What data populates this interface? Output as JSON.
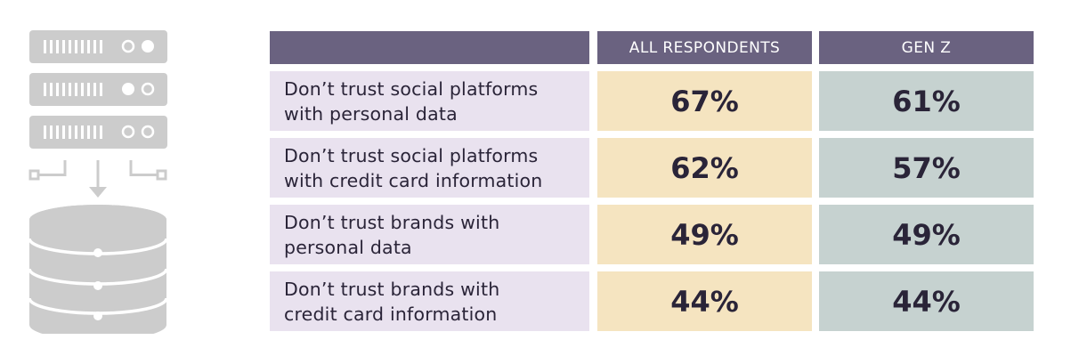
{
  "illustration": {
    "icons": [
      "server-rack-icon",
      "database-icon"
    ],
    "icon_color": "#cccccc"
  },
  "colors": {
    "header_bg": "#6a6280",
    "label_bg": "#e9e2ef",
    "all_bg": "#f5e4c0",
    "genz_bg": "#c6d2d0",
    "text": "#2a2438"
  },
  "chart_data": {
    "type": "table",
    "columns": [
      "",
      "ALL RESPONDENTS",
      "GEN Z"
    ],
    "rows": [
      {
        "label_lines": [
          "Don’t trust social platforms",
          "with personal data"
        ],
        "all": "67%",
        "genz": "61%"
      },
      {
        "label_lines": [
          "Don’t trust social platforms",
          "with credit card information"
        ],
        "all": "62%",
        "genz": "57%"
      },
      {
        "label_lines": [
          "Don’t trust brands with",
          "personal data"
        ],
        "all": "49%",
        "genz": "49%"
      },
      {
        "label_lines": [
          "Don’t trust brands with",
          "credit card information"
        ],
        "all": "44%",
        "genz": "44%"
      }
    ]
  }
}
